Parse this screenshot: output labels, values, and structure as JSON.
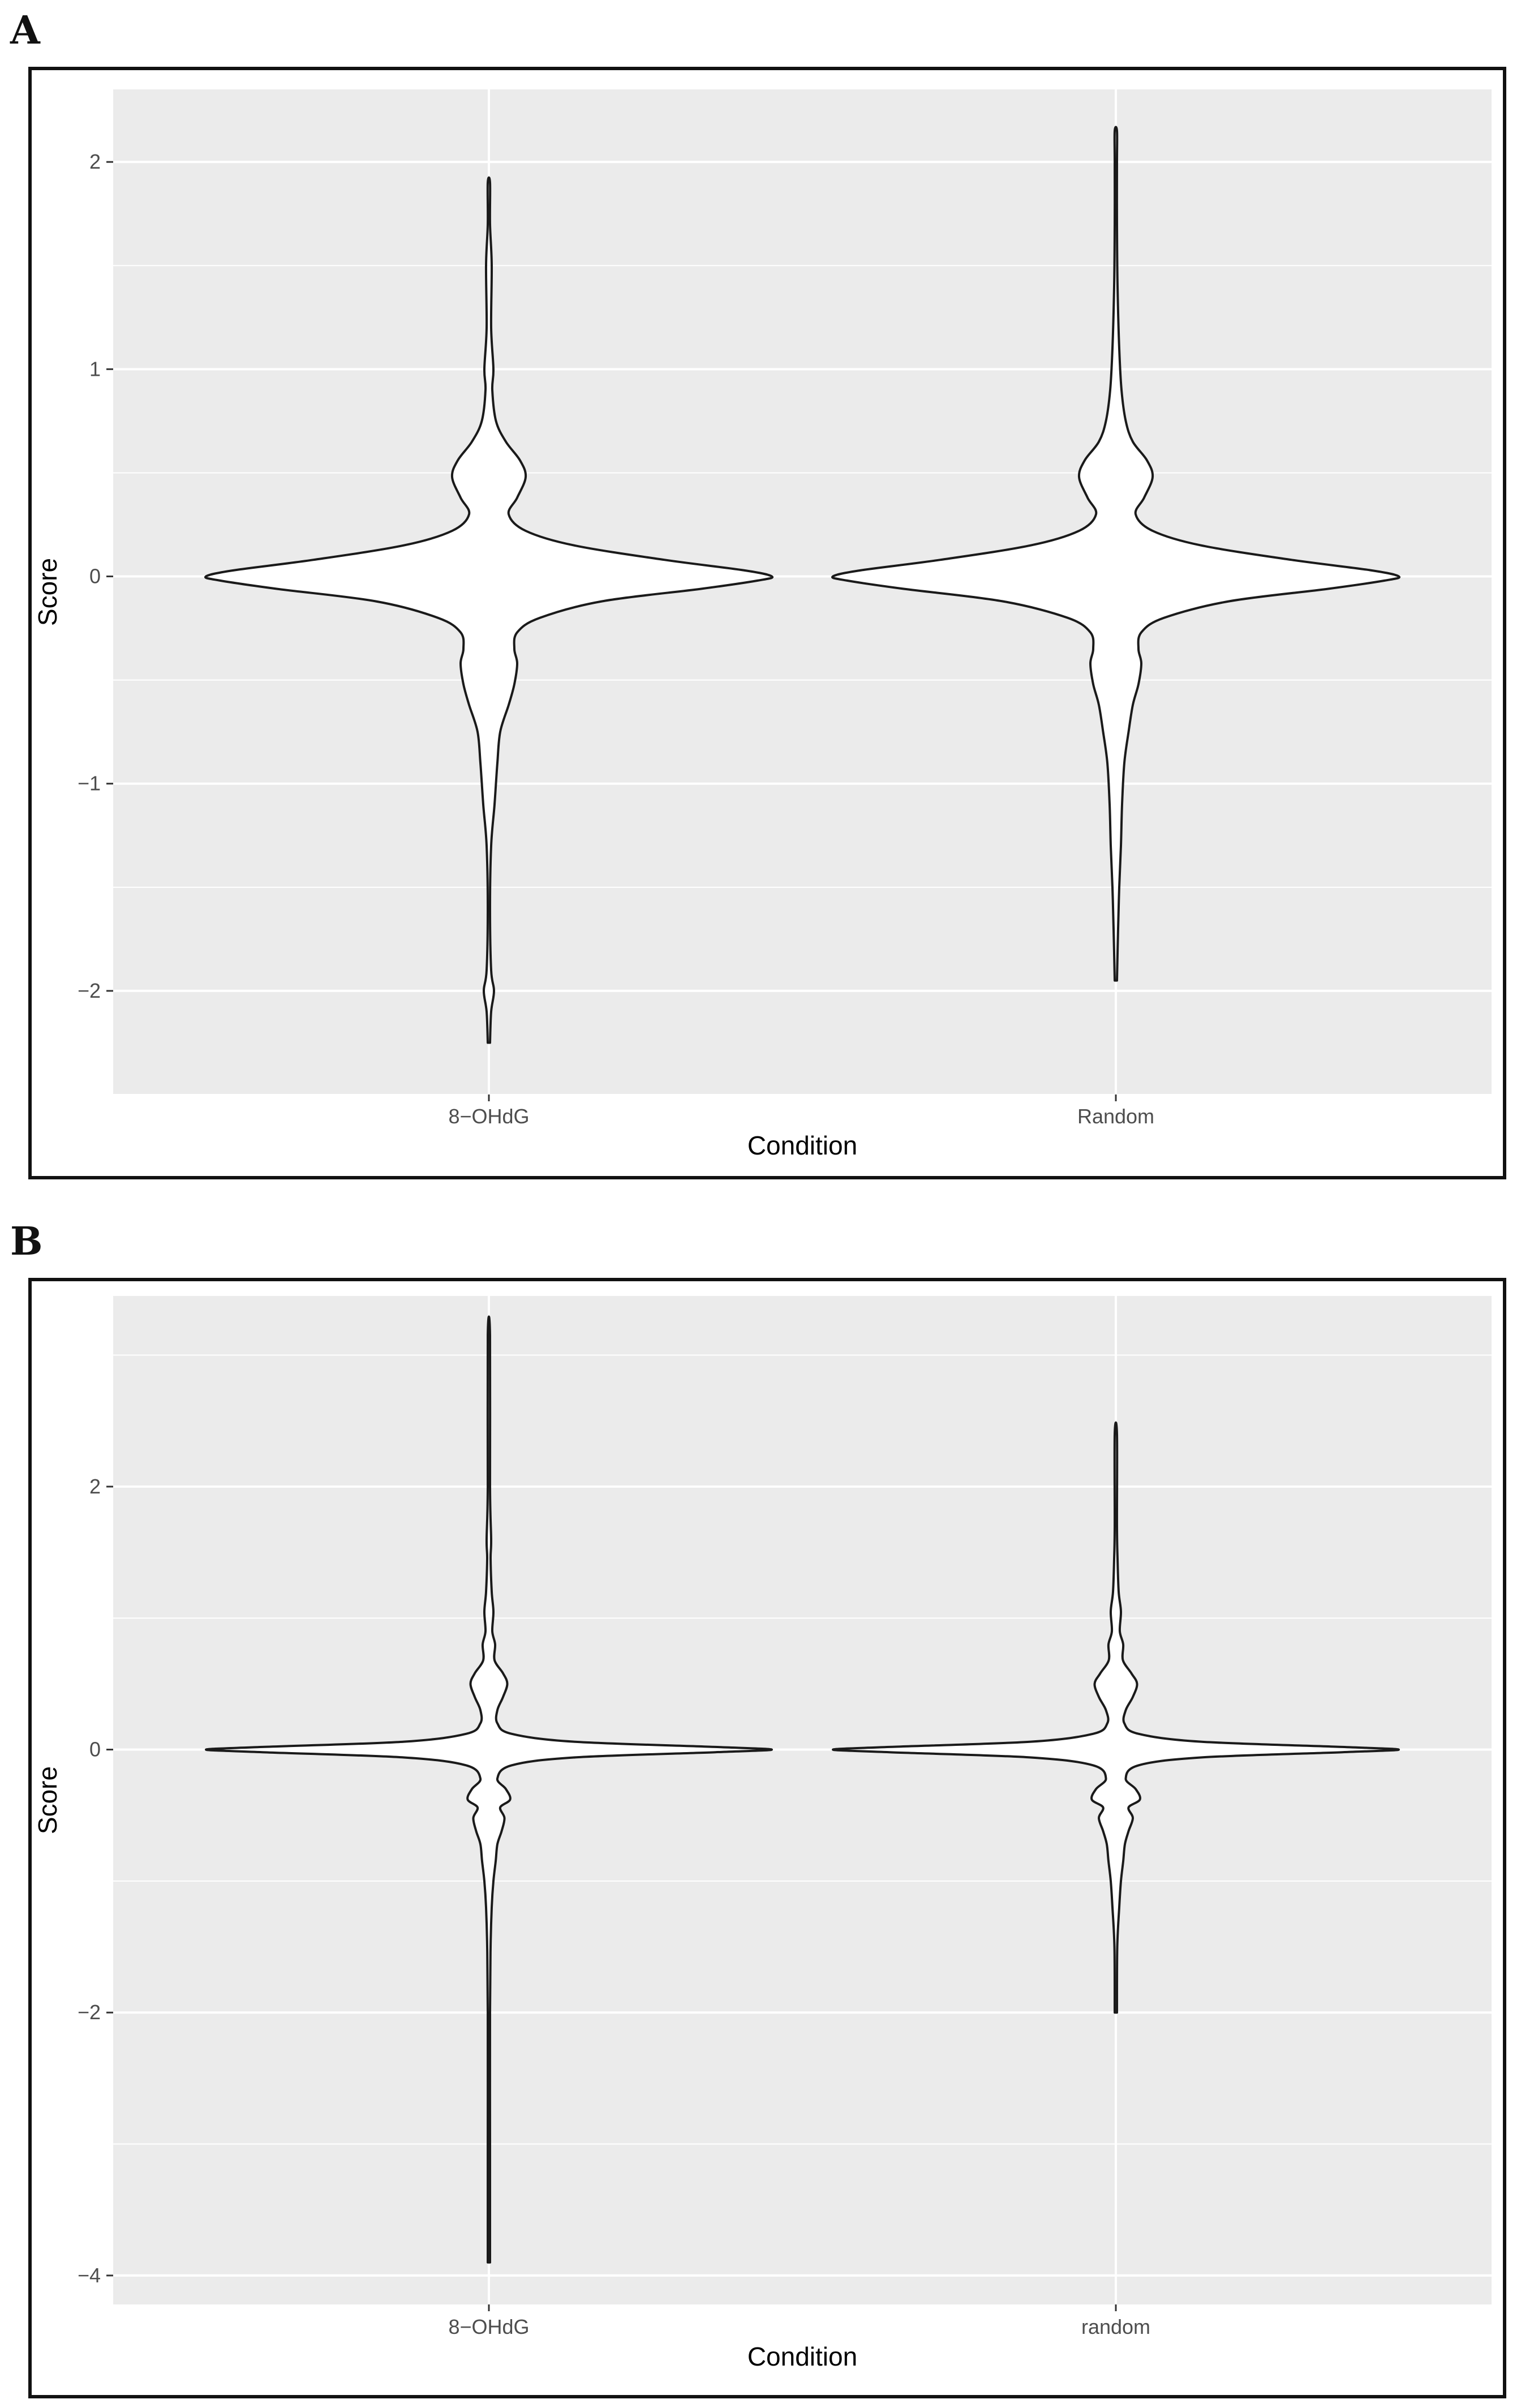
{
  "panels": [
    {
      "letter": "A"
    },
    {
      "letter": "B"
    }
  ],
  "chart_data": [
    {
      "type": "violin",
      "panel": "A",
      "xlabel": "Condition",
      "ylabel": "Score",
      "categories": [
        "8−OHdG",
        "Random"
      ],
      "ylim": [
        -2.5,
        2.35
      ],
      "yticks": [
        -2,
        -1,
        0,
        1,
        2
      ],
      "ytick_labels": [
        "−2",
        "−1",
        "0",
        "1",
        "2"
      ],
      "grid": true,
      "violins": [
        {
          "category": "8−OHdG",
          "ymin": -2.25,
          "ymax": 1.9,
          "density": [
            [
              -2.25,
              0.004
            ],
            [
              -2.1,
              0.008
            ],
            [
              -2.0,
              0.018
            ],
            [
              -1.9,
              0.008
            ],
            [
              -1.6,
              0.004
            ],
            [
              -1.3,
              0.008
            ],
            [
              -1.1,
              0.02
            ],
            [
              -0.9,
              0.03
            ],
            [
              -0.75,
              0.04
            ],
            [
              -0.62,
              0.07
            ],
            [
              -0.52,
              0.09
            ],
            [
              -0.42,
              0.1
            ],
            [
              -0.35,
              0.09
            ],
            [
              -0.27,
              0.1
            ],
            [
              -0.2,
              0.18
            ],
            [
              -0.12,
              0.4
            ],
            [
              -0.06,
              0.75
            ],
            [
              -0.02,
              0.95
            ],
            [
              0.0,
              1.0
            ],
            [
              0.03,
              0.9
            ],
            [
              0.08,
              0.62
            ],
            [
              0.15,
              0.3
            ],
            [
              0.22,
              0.13
            ],
            [
              0.3,
              0.07
            ],
            [
              0.38,
              0.1
            ],
            [
              0.48,
              0.13
            ],
            [
              0.56,
              0.11
            ],
            [
              0.65,
              0.06
            ],
            [
              0.75,
              0.025
            ],
            [
              0.9,
              0.012
            ],
            [
              1.0,
              0.016
            ],
            [
              1.2,
              0.008
            ],
            [
              1.5,
              0.01
            ],
            [
              1.7,
              0.004
            ],
            [
              1.9,
              0.003
            ]
          ]
        },
        {
          "category": "Random",
          "ymin": -1.95,
          "ymax": 2.15,
          "density": [
            [
              -1.95,
              0.004
            ],
            [
              -1.7,
              0.008
            ],
            [
              -1.5,
              0.012
            ],
            [
              -1.3,
              0.018
            ],
            [
              -1.1,
              0.022
            ],
            [
              -0.9,
              0.03
            ],
            [
              -0.75,
              0.045
            ],
            [
              -0.62,
              0.06
            ],
            [
              -0.52,
              0.08
            ],
            [
              -0.42,
              0.09
            ],
            [
              -0.35,
              0.08
            ],
            [
              -0.27,
              0.09
            ],
            [
              -0.2,
              0.17
            ],
            [
              -0.12,
              0.4
            ],
            [
              -0.06,
              0.75
            ],
            [
              -0.02,
              0.95
            ],
            [
              0.0,
              1.0
            ],
            [
              0.03,
              0.9
            ],
            [
              0.08,
              0.62
            ],
            [
              0.15,
              0.3
            ],
            [
              0.22,
              0.13
            ],
            [
              0.3,
              0.07
            ],
            [
              0.38,
              0.1
            ],
            [
              0.48,
              0.13
            ],
            [
              0.56,
              0.11
            ],
            [
              0.65,
              0.06
            ],
            [
              0.75,
              0.035
            ],
            [
              0.9,
              0.02
            ],
            [
              1.1,
              0.012
            ],
            [
              1.4,
              0.006
            ],
            [
              1.7,
              0.004
            ],
            [
              2.0,
              0.003
            ],
            [
              2.15,
              0.002
            ]
          ]
        }
      ]
    },
    {
      "type": "violin",
      "panel": "B",
      "xlabel": "Condition",
      "ylabel": "Score",
      "categories": [
        "8−OHdG",
        "random"
      ],
      "ylim": [
        -4.22,
        3.45
      ],
      "yticks": [
        -4,
        -2,
        0,
        2
      ],
      "ytick_labels": [
        "−4",
        "−2",
        "0",
        "2"
      ],
      "grid": true,
      "violins": [
        {
          "category": "8−OHdG",
          "ymin": -3.9,
          "ymax": 3.15,
          "density": [
            [
              -3.9,
              0.002
            ],
            [
              -3.0,
              0.002
            ],
            [
              -2.0,
              0.003
            ],
            [
              -1.5,
              0.006
            ],
            [
              -1.2,
              0.01
            ],
            [
              -1.0,
              0.016
            ],
            [
              -0.85,
              0.024
            ],
            [
              -0.72,
              0.03
            ],
            [
              -0.62,
              0.045
            ],
            [
              -0.52,
              0.055
            ],
            [
              -0.44,
              0.04
            ],
            [
              -0.38,
              0.075
            ],
            [
              -0.3,
              0.06
            ],
            [
              -0.22,
              0.03
            ],
            [
              -0.12,
              0.08
            ],
            [
              -0.06,
              0.3
            ],
            [
              -0.02,
              0.8
            ],
            [
              0.0,
              1.0
            ],
            [
              0.02,
              0.8
            ],
            [
              0.06,
              0.3
            ],
            [
              0.12,
              0.08
            ],
            [
              0.2,
              0.03
            ],
            [
              0.3,
              0.03
            ],
            [
              0.4,
              0.05
            ],
            [
              0.5,
              0.065
            ],
            [
              0.58,
              0.05
            ],
            [
              0.68,
              0.02
            ],
            [
              0.8,
              0.022
            ],
            [
              0.9,
              0.012
            ],
            [
              1.05,
              0.016
            ],
            [
              1.2,
              0.01
            ],
            [
              1.45,
              0.006
            ],
            [
              1.6,
              0.008
            ],
            [
              2.0,
              0.003
            ],
            [
              3.15,
              0.002
            ]
          ]
        },
        {
          "category": "random",
          "ymin": -2.0,
          "ymax": 2.4,
          "density": [
            [
              -2.0,
              0.003
            ],
            [
              -1.5,
              0.005
            ],
            [
              -1.2,
              0.012
            ],
            [
              -1.0,
              0.018
            ],
            [
              -0.85,
              0.026
            ],
            [
              -0.72,
              0.032
            ],
            [
              -0.62,
              0.045
            ],
            [
              -0.52,
              0.06
            ],
            [
              -0.44,
              0.045
            ],
            [
              -0.38,
              0.085
            ],
            [
              -0.3,
              0.07
            ],
            [
              -0.22,
              0.035
            ],
            [
              -0.12,
              0.08
            ],
            [
              -0.06,
              0.3
            ],
            [
              -0.02,
              0.8
            ],
            [
              0.0,
              1.0
            ],
            [
              0.02,
              0.8
            ],
            [
              0.06,
              0.3
            ],
            [
              0.12,
              0.08
            ],
            [
              0.2,
              0.03
            ],
            [
              0.3,
              0.035
            ],
            [
              0.4,
              0.06
            ],
            [
              0.5,
              0.075
            ],
            [
              0.58,
              0.055
            ],
            [
              0.68,
              0.025
            ],
            [
              0.8,
              0.026
            ],
            [
              0.9,
              0.014
            ],
            [
              1.05,
              0.018
            ],
            [
              1.2,
              0.01
            ],
            [
              1.45,
              0.006
            ],
            [
              1.7,
              0.004
            ],
            [
              2.4,
              0.002
            ]
          ]
        }
      ]
    }
  ]
}
